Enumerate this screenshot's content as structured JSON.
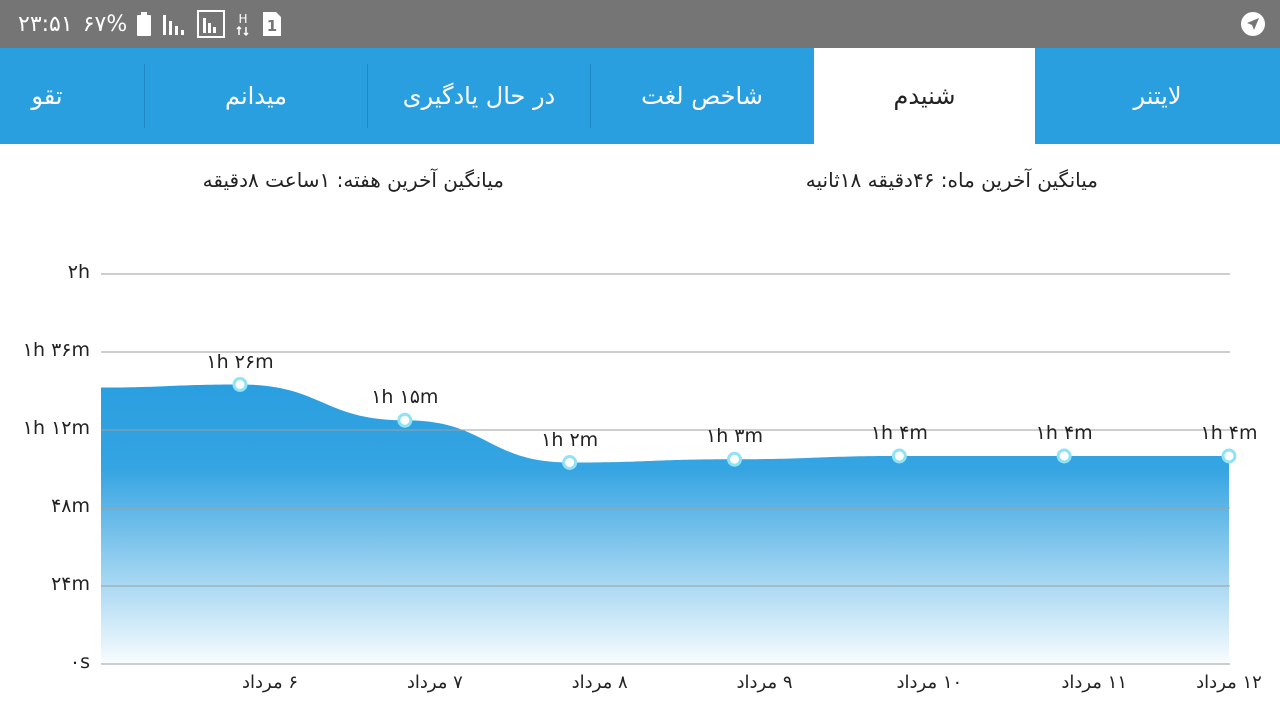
{
  "status_bar": {
    "time": "۲۳:۵۱",
    "battery": "۶۷%",
    "sim_badge": "1",
    "network_letter": "H"
  },
  "tabs": [
    {
      "label": "لایتنر",
      "active": false
    },
    {
      "label": "شنیدم",
      "active": true
    },
    {
      "label": "شاخص لغت",
      "active": false
    },
    {
      "label": "در حال یادگیری",
      "active": false
    },
    {
      "label": "میدانم",
      "active": false
    },
    {
      "label": "تقو",
      "active": false
    }
  ],
  "averages": {
    "month": "میانگین آخرین ماه: ۴۶دقیقه  ۱۸ثانیه",
    "week": "میانگین آخرین هفته: ۱ساعت  ۸دقیقه"
  },
  "colors": {
    "accent": "#2a9fe0",
    "area_top": "#2a9fe0",
    "point": "#8fe3f5"
  },
  "chart_data": {
    "type": "area",
    "ylabels": [
      "۰s",
      "۲۴m",
      "۴۸m",
      "۱h ۱۲m",
      "۱h ۳۶m",
      "۲h"
    ],
    "ylim": [
      0,
      120
    ],
    "grid": true,
    "x": [
      "۶ مرداد",
      "۷ مرداد",
      "۸ مرداد",
      "۹ مرداد",
      "۱۰ مرداد",
      "۱۱ مرداد",
      "۱۲ مرداد"
    ],
    "values": [
      86,
      75,
      62,
      63,
      64,
      64,
      64
    ],
    "data_labels": [
      "۱h ۲۶m",
      "۱h ۱۵m",
      "۱h ۲m",
      "۱h ۳m",
      "۱h ۴m",
      "۱h ۴m",
      "۱h ۴m"
    ]
  }
}
